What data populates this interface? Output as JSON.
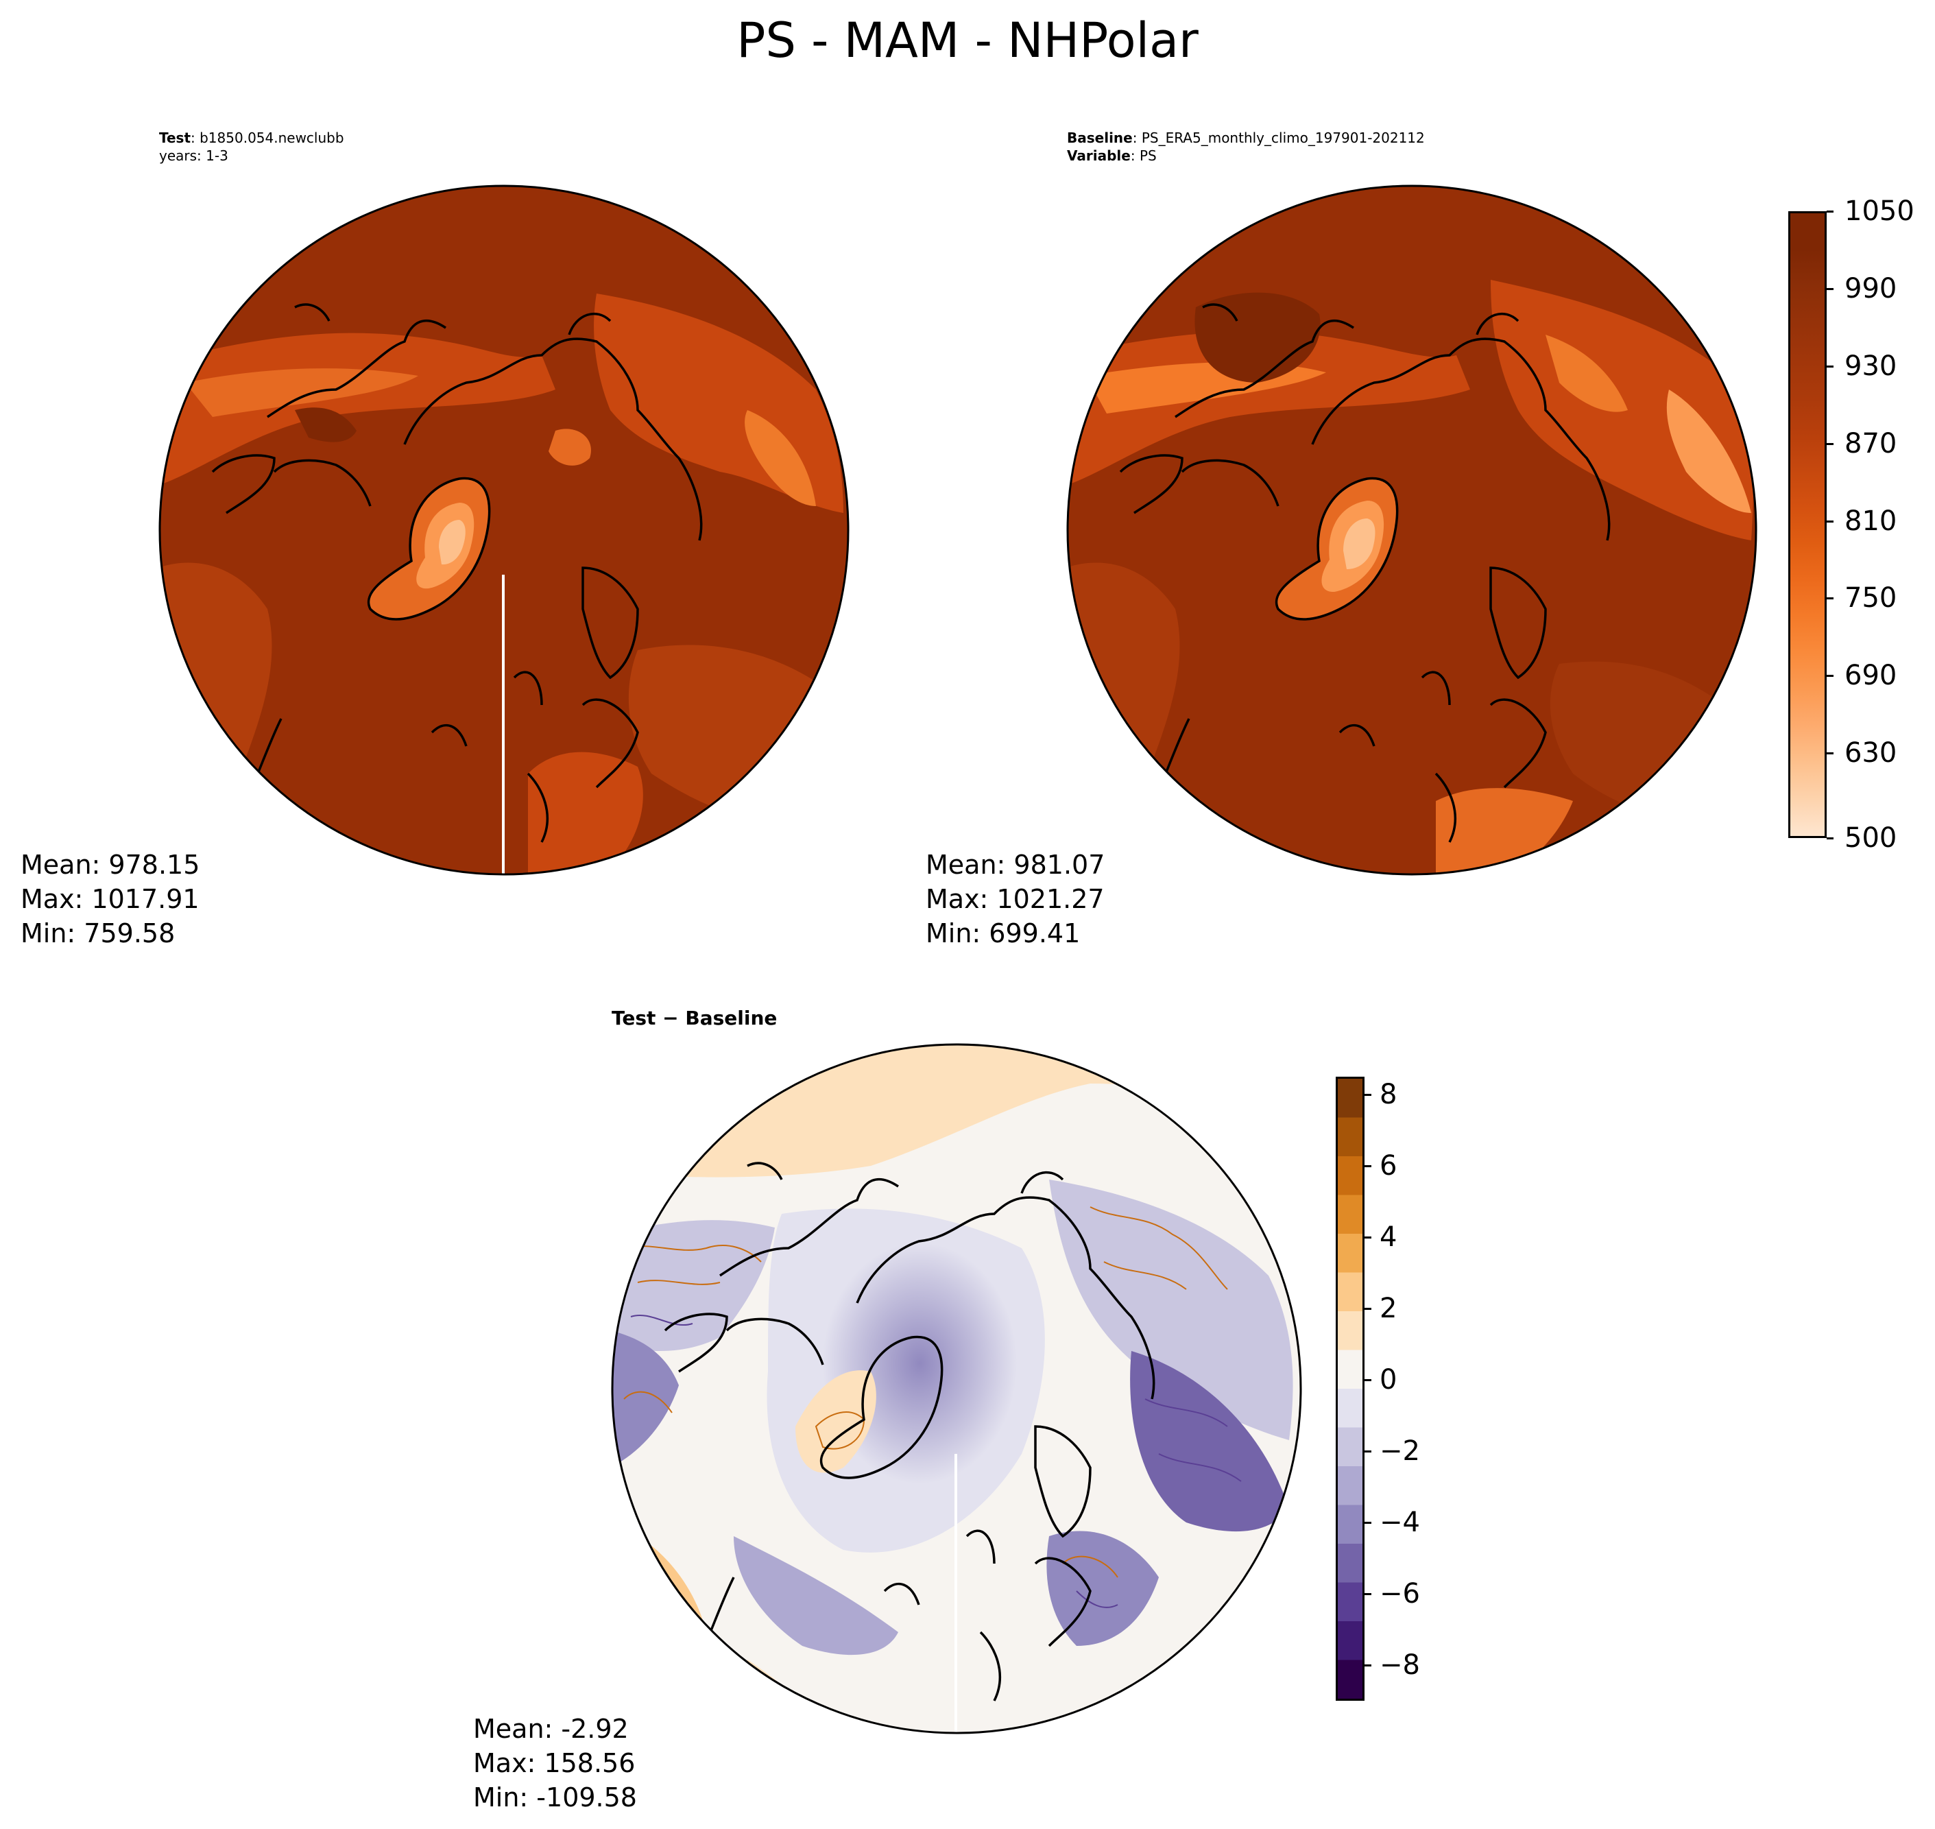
{
  "figure": {
    "title": "PS - MAM - NHPolar"
  },
  "panels": {
    "test": {
      "header_bold_1": "Test",
      "header_value_1": ": b1850.054.newclubb",
      "header_line_2": "years: 1-3",
      "stats": {
        "mean": "Mean: 978.15",
        "max": "Max: 1017.91",
        "min": "Min: 759.58"
      }
    },
    "baseline": {
      "header_bold_1": "Baseline",
      "header_value_1": ": PS_ERA5_monthly_climo_197901-202112",
      "header_bold_2": "Variable",
      "header_value_2": ": PS",
      "stats": {
        "mean": "Mean: 981.07",
        "max": "Max: 1021.27",
        "min": "Min: 699.41"
      }
    },
    "diff": {
      "header": "Test − Baseline",
      "stats": {
        "mean": "Mean: -2.92",
        "max": "Max: 158.56",
        "min": "Min: -109.58"
      }
    }
  },
  "colorbars": {
    "main": {
      "ticks": [
        "1050",
        "990",
        "930",
        "870",
        "810",
        "750",
        "690",
        "630",
        "500"
      ],
      "colors": [
        "#fee6d0",
        "#fdd3ad",
        "#fdc08c",
        "#fdab6e",
        "#fb9a52",
        "#f98a3b",
        "#f47a29",
        "#ec6a1c",
        "#e05d12",
        "#d45110",
        "#c6480e",
        "#b83f0c",
        "#ab3a0b",
        "#a1360a",
        "#963209",
        "#8b2e08",
        "#7f2704"
      ]
    },
    "diff": {
      "ticks": [
        "8",
        "6",
        "4",
        "2",
        "0",
        "−2",
        "−4",
        "−6",
        "−8"
      ],
      "colors_top_to_bottom": [
        "#7f3b08",
        "#a65508",
        "#c96d10",
        "#e08a26",
        "#f1aa4f",
        "#fbc98a",
        "#fde1bd",
        "#f7f4f0",
        "#e3e2ef",
        "#c9c6e0",
        "#aea9d1",
        "#9189bf",
        "#7464a9",
        "#5a3f94",
        "#3f1b73",
        "#2d004b"
      ]
    }
  },
  "map_colors": {
    "polar_land_high": "#7f2704",
    "ocean": "#972f06",
    "mid": "#c9470f",
    "highland": "#ef7a2a",
    "greenland_peak": "#fdc08c",
    "diff_neutral": "#f7f4f0",
    "diff_neg": "#9189bf",
    "diff_pos": "#f1aa4f"
  }
}
